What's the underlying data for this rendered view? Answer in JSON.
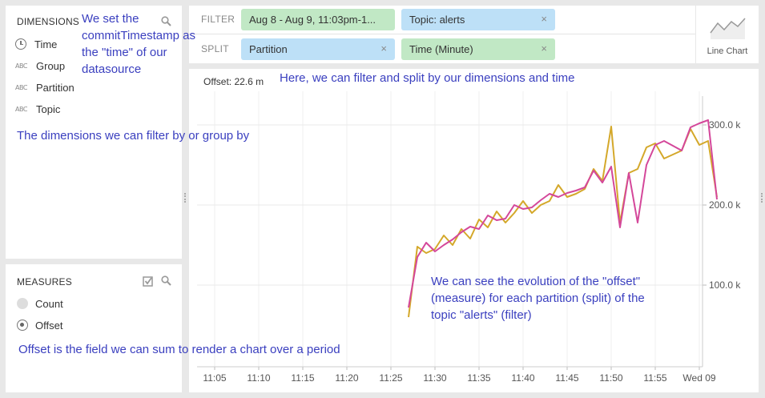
{
  "dimensions": {
    "title": "DIMENSIONS",
    "items": [
      {
        "label": "Time",
        "icon": "clock-icon"
      },
      {
        "label": "Group",
        "icon": "abc-icon"
      },
      {
        "label": "Partition",
        "icon": "abc-icon"
      },
      {
        "label": "Topic",
        "icon": "abc-icon"
      }
    ],
    "abc_text": "ABC"
  },
  "measures": {
    "title": "MEASURES",
    "items": [
      {
        "label": "Count",
        "selected": false
      },
      {
        "label": "Offset",
        "selected": true
      }
    ]
  },
  "filter_bar": {
    "filter_label": "FILTER",
    "split_label": "SPLIT",
    "filters": [
      {
        "label": "Aug 8 - Aug 9, 11:03pm-1...",
        "color": "#c1e8c5"
      },
      {
        "label": "Topic: alerts",
        "color": "#bde0f7"
      }
    ],
    "splits": [
      {
        "label": "Partition",
        "color": "#bde0f7"
      },
      {
        "label": "Time (Minute)",
        "color": "#c1e8c5"
      }
    ],
    "remove_glyph": "×"
  },
  "visualization": {
    "label": "Line Chart"
  },
  "chart_header": {
    "measure_readout": "Offset: 22.6 m"
  },
  "annotations": {
    "time_note": "We set the commitTimestamp as the \"time\" of our datasource",
    "dimensions_note": "The dimensions we can filter by or group by",
    "filter_note": "Here, we can filter and split by our dimensions and time",
    "evolution_note": "We can see the evolution of the \"offset\" (measure) for each partition (split) of the topic \"alerts\" (filter)",
    "offset_note": "Offset is the field we can sum to render a chart over a period"
  },
  "chart_data": {
    "type": "line",
    "x_ticks": [
      "11:05",
      "11:10",
      "11:15",
      "11:20",
      "11:25",
      "11:30",
      "11:35",
      "11:40",
      "11:45",
      "11:50",
      "11:55",
      "Wed 09"
    ],
    "y_ticks": [
      "100.0 k",
      "200.0 k",
      "300.0 k"
    ],
    "ylim": [
      0,
      340000
    ],
    "grid": true,
    "series": [
      {
        "color": "#d4a82a",
        "points": [
          [
            "11:27",
            60000
          ],
          [
            "11:28",
            148000
          ],
          [
            "11:29",
            140000
          ],
          [
            "11:30",
            145000
          ],
          [
            "11:31",
            162000
          ],
          [
            "11:32",
            150000
          ],
          [
            "11:33",
            170000
          ],
          [
            "11:34",
            158000
          ],
          [
            "11:35",
            182000
          ],
          [
            "11:36",
            172000
          ],
          [
            "11:37",
            192000
          ],
          [
            "11:38",
            178000
          ],
          [
            "11:39",
            190000
          ],
          [
            "11:40",
            205000
          ],
          [
            "11:41",
            190000
          ],
          [
            "11:42",
            200000
          ],
          [
            "11:43",
            205000
          ],
          [
            "11:44",
            225000
          ],
          [
            "11:45",
            210000
          ],
          [
            "11:46",
            214000
          ],
          [
            "11:47",
            220000
          ],
          [
            "11:48",
            245000
          ],
          [
            "11:49",
            230000
          ],
          [
            "11:50",
            298000
          ],
          [
            "11:51",
            178000
          ],
          [
            "11:52",
            240000
          ],
          [
            "11:53",
            245000
          ],
          [
            "11:54",
            272000
          ],
          [
            "11:55",
            277000
          ],
          [
            "11:56",
            258000
          ],
          [
            "11:58",
            268000
          ],
          [
            "11:59",
            295000
          ],
          [
            "12:00",
            275000
          ],
          [
            "12:01",
            280000
          ],
          [
            "12:02",
            210000
          ]
        ]
      },
      {
        "color": "#d4479a",
        "points": [
          [
            "11:27",
            72000
          ],
          [
            "11:28",
            135000
          ],
          [
            "11:29",
            153000
          ],
          [
            "11:30",
            142000
          ],
          [
            "11:31",
            150000
          ],
          [
            "11:32",
            157000
          ],
          [
            "11:33",
            166000
          ],
          [
            "11:34",
            173000
          ],
          [
            "11:35",
            170000
          ],
          [
            "11:36",
            187000
          ],
          [
            "11:37",
            181000
          ],
          [
            "11:38",
            183000
          ],
          [
            "11:39",
            200000
          ],
          [
            "11:40",
            195000
          ],
          [
            "11:41",
            197000
          ],
          [
            "11:42",
            206000
          ],
          [
            "11:43",
            214000
          ],
          [
            "11:44",
            210000
          ],
          [
            "11:45",
            215000
          ],
          [
            "11:46",
            218000
          ],
          [
            "11:47",
            222000
          ],
          [
            "11:48",
            243000
          ],
          [
            "11:49",
            228000
          ],
          [
            "11:50",
            248000
          ],
          [
            "11:51",
            172000
          ],
          [
            "11:52",
            240000
          ],
          [
            "11:53",
            178000
          ],
          [
            "11:54",
            250000
          ],
          [
            "11:55",
            275000
          ],
          [
            "11:56",
            280000
          ],
          [
            "11:58",
            268000
          ],
          [
            "11:59",
            297000
          ],
          [
            "12:00",
            302000
          ],
          [
            "12:01",
            306000
          ],
          [
            "12:02",
            207000
          ]
        ]
      }
    ]
  }
}
